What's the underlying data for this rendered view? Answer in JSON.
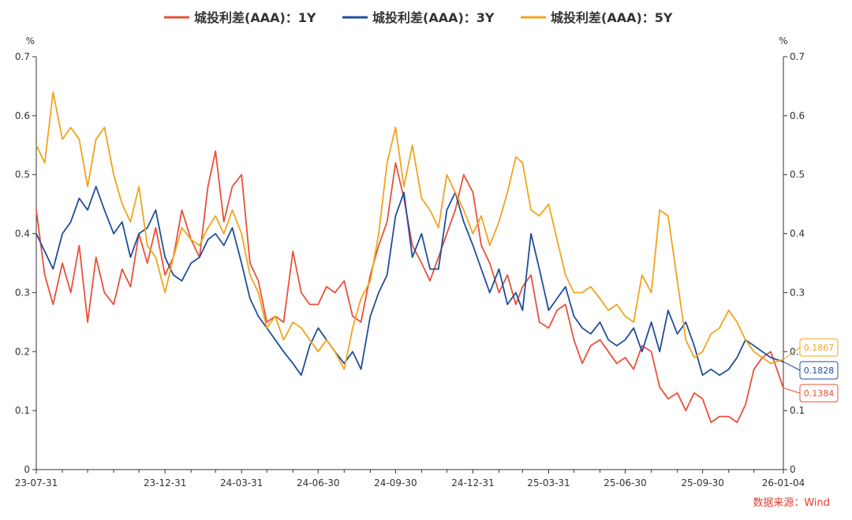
{
  "chart_data": {
    "type": "line",
    "title": "",
    "xlabel": "",
    "ylabel": "%",
    "y2label": "%",
    "ylim": [
      0,
      0.7
    ],
    "yticks": [
      "0",
      "0.1",
      "0.2",
      "0.3",
      "0.4",
      "0.5",
      "0.6",
      "0.7"
    ],
    "y2ticks": [
      "0",
      "0.1",
      "0.2",
      "0.3",
      "0.4",
      "0.5",
      "0.6",
      "0.7"
    ],
    "x_start": "23-07-31",
    "x_end": "26-01-04",
    "xtick_labels": [
      "23-07-31",
      "23-12-31",
      "24-03-31",
      "24-06-30",
      "24-09-30",
      "24-12-31",
      "25-03-31",
      "25-06-30",
      "25-09-30",
      "26-01-04"
    ],
    "xtick_minor": [
      "23-08-31",
      "23-09-30",
      "23-10-31",
      "23-11-30",
      "24-01-31",
      "24-02-29",
      "24-04-30",
      "24-05-31",
      "24-07-31",
      "24-08-31",
      "24-10-31",
      "24-11-30",
      "25-01-31",
      "25-02-28",
      "25-04-30",
      "25-05-31",
      "25-07-31",
      "25-08-31",
      "25-10-31",
      "25-11-30"
    ],
    "grid": false,
    "legend_position": "top",
    "source": "数据来源：Wind",
    "series": [
      {
        "name": "城投利差(AAA)：1Y",
        "color": "#e8513a",
        "end_value": "0.1384",
        "x": [
          "23-07-31",
          "23-08-10",
          "23-08-20",
          "23-08-31",
          "23-09-10",
          "23-09-20",
          "23-09-30",
          "23-10-10",
          "23-10-20",
          "23-10-31",
          "23-11-10",
          "23-11-20",
          "23-11-30",
          "23-12-10",
          "23-12-20",
          "23-12-31",
          "24-01-10",
          "24-01-20",
          "24-01-31",
          "24-02-10",
          "24-02-20",
          "24-02-29",
          "24-03-10",
          "24-03-20",
          "24-03-31",
          "24-04-10",
          "24-04-20",
          "24-04-30",
          "24-05-10",
          "24-05-20",
          "24-05-31",
          "24-06-10",
          "24-06-20",
          "24-06-30",
          "24-07-10",
          "24-07-20",
          "24-07-31",
          "24-08-10",
          "24-08-20",
          "24-08-31",
          "24-09-10",
          "24-09-20",
          "24-09-30",
          "24-10-10",
          "24-10-20",
          "24-10-31",
          "24-11-10",
          "24-11-20",
          "24-11-30",
          "24-12-10",
          "24-12-20",
          "24-12-31",
          "25-01-10",
          "25-01-20",
          "25-01-31",
          "25-02-10",
          "25-02-20",
          "25-02-28",
          "25-03-10",
          "25-03-20",
          "25-03-31",
          "25-04-10",
          "25-04-20",
          "25-04-30",
          "25-05-10",
          "25-05-20",
          "25-05-31",
          "25-06-10",
          "25-06-20",
          "25-06-30",
          "25-07-10",
          "25-07-20",
          "25-07-31",
          "25-08-10",
          "25-08-20",
          "25-08-31",
          "25-09-10",
          "25-09-20",
          "25-09-30",
          "25-10-10",
          "25-10-20",
          "25-10-31",
          "25-11-10",
          "25-11-20",
          "25-11-30",
          "25-12-10",
          "25-12-20",
          "26-01-04"
        ],
        "values": [
          0.44,
          0.33,
          0.28,
          0.35,
          0.3,
          0.38,
          0.25,
          0.36,
          0.3,
          0.28,
          0.34,
          0.31,
          0.4,
          0.35,
          0.41,
          0.33,
          0.36,
          0.44,
          0.39,
          0.36,
          0.48,
          0.54,
          0.42,
          0.48,
          0.5,
          0.35,
          0.32,
          0.25,
          0.26,
          0.25,
          0.37,
          0.3,
          0.28,
          0.28,
          0.31,
          0.3,
          0.32,
          0.26,
          0.25,
          0.33,
          0.38,
          0.42,
          0.52,
          0.46,
          0.38,
          0.35,
          0.32,
          0.36,
          0.4,
          0.44,
          0.5,
          0.47,
          0.38,
          0.35,
          0.3,
          0.33,
          0.28,
          0.31,
          0.33,
          0.25,
          0.24,
          0.27,
          0.28,
          0.22,
          0.18,
          0.21,
          0.22,
          0.2,
          0.18,
          0.19,
          0.17,
          0.21,
          0.2,
          0.14,
          0.12,
          0.13,
          0.1,
          0.13,
          0.12,
          0.08,
          0.09,
          0.09,
          0.08,
          0.11,
          0.17,
          0.19,
          0.2,
          0.1384
        ]
      },
      {
        "name": "城投利差(AAA)：3Y",
        "color": "#1f4e9c",
        "end_value": "0.1828",
        "x": [
          "23-07-31",
          "23-08-10",
          "23-08-20",
          "23-08-31",
          "23-09-10",
          "23-09-20",
          "23-09-30",
          "23-10-10",
          "23-10-20",
          "23-10-31",
          "23-11-10",
          "23-11-20",
          "23-11-30",
          "23-12-10",
          "23-12-20",
          "23-12-31",
          "24-01-10",
          "24-01-20",
          "24-01-31",
          "24-02-10",
          "24-02-20",
          "24-02-29",
          "24-03-10",
          "24-03-20",
          "24-03-31",
          "24-04-10",
          "24-04-20",
          "24-04-30",
          "24-05-10",
          "24-05-20",
          "24-05-31",
          "24-06-10",
          "24-06-20",
          "24-06-30",
          "24-07-10",
          "24-07-20",
          "24-07-31",
          "24-08-10",
          "24-08-20",
          "24-08-31",
          "24-09-10",
          "24-09-20",
          "24-09-30",
          "24-10-10",
          "24-10-20",
          "24-10-31",
          "24-11-10",
          "24-11-20",
          "24-11-30",
          "24-12-10",
          "24-12-20",
          "24-12-31",
          "25-01-10",
          "25-01-20",
          "25-01-31",
          "25-02-10",
          "25-02-20",
          "25-02-28",
          "25-03-10",
          "25-03-20",
          "25-03-31",
          "25-04-10",
          "25-04-20",
          "25-04-30",
          "25-05-10",
          "25-05-20",
          "25-05-31",
          "25-06-10",
          "25-06-20",
          "25-06-30",
          "25-07-10",
          "25-07-20",
          "25-07-31",
          "25-08-10",
          "25-08-20",
          "25-08-31",
          "25-09-10",
          "25-09-20",
          "25-09-30",
          "25-10-10",
          "25-10-20",
          "25-10-31",
          "25-11-10",
          "25-11-20",
          "25-11-30",
          "25-12-10",
          "25-12-20",
          "26-01-04"
        ],
        "values": [
          0.4,
          0.37,
          0.34,
          0.4,
          0.42,
          0.46,
          0.44,
          0.48,
          0.44,
          0.4,
          0.42,
          0.36,
          0.4,
          0.41,
          0.44,
          0.36,
          0.33,
          0.32,
          0.35,
          0.36,
          0.39,
          0.4,
          0.38,
          0.41,
          0.35,
          0.29,
          0.26,
          0.24,
          0.22,
          0.2,
          0.18,
          0.16,
          0.21,
          0.24,
          0.22,
          0.2,
          0.18,
          0.2,
          0.17,
          0.26,
          0.3,
          0.33,
          0.43,
          0.47,
          0.36,
          0.4,
          0.34,
          0.34,
          0.44,
          0.47,
          0.42,
          0.38,
          0.34,
          0.3,
          0.34,
          0.28,
          0.3,
          0.27,
          0.4,
          0.34,
          0.27,
          0.29,
          0.31,
          0.26,
          0.24,
          0.23,
          0.25,
          0.22,
          0.21,
          0.22,
          0.24,
          0.2,
          0.25,
          0.2,
          0.27,
          0.23,
          0.25,
          0.21,
          0.16,
          0.17,
          0.16,
          0.17,
          0.19,
          0.22,
          0.21,
          0.2,
          0.19,
          0.1828
        ]
      },
      {
        "name": "城投利差(AAA)：5Y",
        "color": "#f0a41e",
        "end_value": "0.1867",
        "x": [
          "23-07-31",
          "23-08-10",
          "23-08-20",
          "23-08-31",
          "23-09-10",
          "23-09-20",
          "23-09-30",
          "23-10-10",
          "23-10-20",
          "23-10-31",
          "23-11-10",
          "23-11-20",
          "23-11-30",
          "23-12-10",
          "23-12-20",
          "23-12-31",
          "24-01-10",
          "24-01-20",
          "24-01-31",
          "24-02-10",
          "24-02-20",
          "24-02-29",
          "24-03-10",
          "24-03-20",
          "24-03-31",
          "24-04-10",
          "24-04-20",
          "24-04-30",
          "24-05-10",
          "24-05-20",
          "24-05-31",
          "24-06-10",
          "24-06-20",
          "24-06-30",
          "24-07-10",
          "24-07-20",
          "24-07-31",
          "24-08-10",
          "24-08-20",
          "24-08-31",
          "24-09-10",
          "24-09-20",
          "24-09-30",
          "24-10-10",
          "24-10-20",
          "24-10-31",
          "24-11-10",
          "24-11-20",
          "24-11-30",
          "24-12-10",
          "24-12-20",
          "24-12-31",
          "25-01-10",
          "25-01-20",
          "25-01-31",
          "25-02-10",
          "25-02-20",
          "25-02-28",
          "25-03-10",
          "25-03-20",
          "25-03-31",
          "25-04-10",
          "25-04-20",
          "25-04-30",
          "25-05-10",
          "25-05-20",
          "25-05-31",
          "25-06-10",
          "25-06-20",
          "25-06-30",
          "25-07-10",
          "25-07-20",
          "25-07-31",
          "25-08-10",
          "25-08-20",
          "25-08-31",
          "25-09-10",
          "25-09-20",
          "25-09-30",
          "25-10-10",
          "25-10-20",
          "25-10-31",
          "25-11-10",
          "25-11-20",
          "25-11-30",
          "25-12-10",
          "25-12-20",
          "26-01-04"
        ],
        "values": [
          0.55,
          0.52,
          0.64,
          0.56,
          0.58,
          0.56,
          0.48,
          0.56,
          0.58,
          0.5,
          0.45,
          0.42,
          0.48,
          0.38,
          0.36,
          0.3,
          0.36,
          0.41,
          0.39,
          0.38,
          0.41,
          0.43,
          0.4,
          0.44,
          0.4,
          0.33,
          0.3,
          0.24,
          0.26,
          0.22,
          0.25,
          0.24,
          0.22,
          0.2,
          0.22,
          0.2,
          0.17,
          0.24,
          0.29,
          0.32,
          0.4,
          0.52,
          0.58,
          0.48,
          0.55,
          0.46,
          0.44,
          0.41,
          0.5,
          0.47,
          0.44,
          0.4,
          0.43,
          0.38,
          0.42,
          0.47,
          0.53,
          0.52,
          0.44,
          0.43,
          0.45,
          0.39,
          0.33,
          0.3,
          0.3,
          0.31,
          0.29,
          0.27,
          0.28,
          0.26,
          0.25,
          0.33,
          0.3,
          0.44,
          0.43,
          0.32,
          0.22,
          0.19,
          0.2,
          0.23,
          0.24,
          0.27,
          0.25,
          0.22,
          0.2,
          0.19,
          0.18,
          0.1867
        ]
      }
    ]
  }
}
